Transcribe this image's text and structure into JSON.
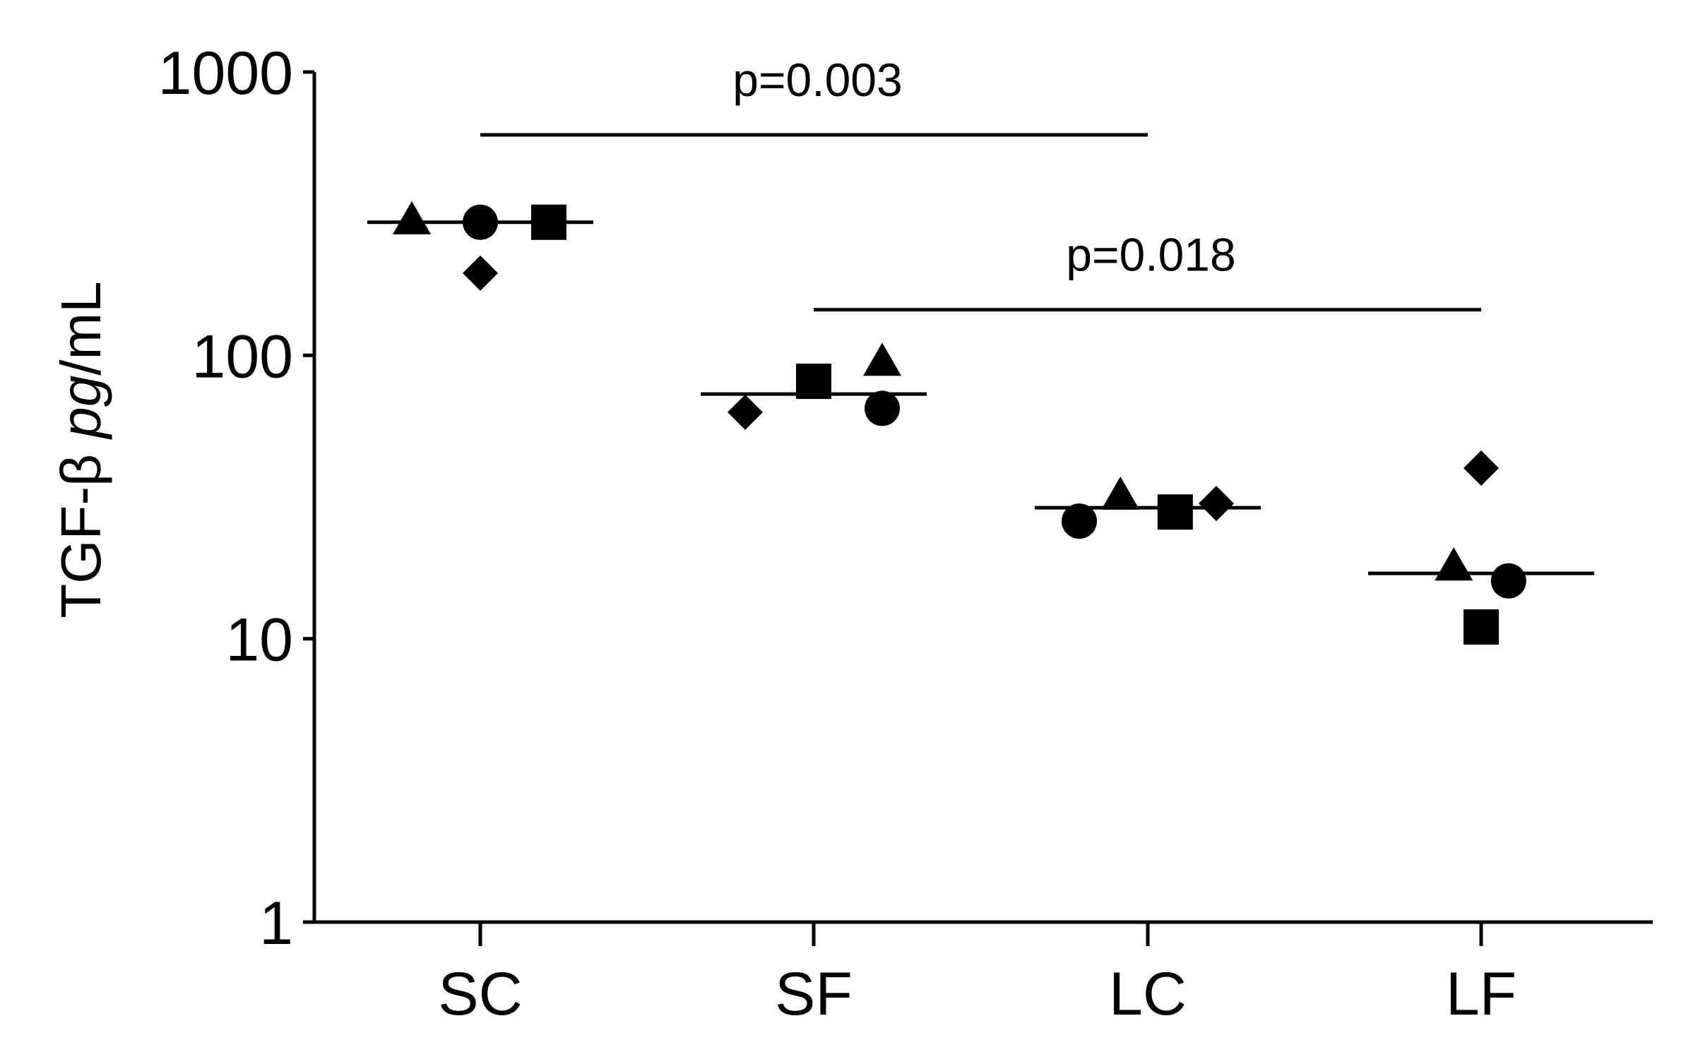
{
  "chart_data": {
    "type": "scatter",
    "subtype": "dot-plot-with-median",
    "ylabel_prefix": "TGF-β ",
    "ylabel_italic": "pg",
    "ylabel_suffix": "/mL",
    "yscale": "log",
    "ylim": [
      1,
      1000
    ],
    "yticks": [
      {
        "value": 1,
        "label": "1"
      },
      {
        "value": 10,
        "label": "10"
      },
      {
        "value": 100,
        "label": "100"
      },
      {
        "value": 1000,
        "label": "1000"
      }
    ],
    "categories": [
      "SC",
      "SF",
      "LC",
      "LF"
    ],
    "grid": false,
    "legend": "none",
    "marker_color": "#000000",
    "groups": [
      {
        "category": "SC",
        "median": 295,
        "points": [
          {
            "marker": "triangle",
            "value": 300,
            "jitter": -1
          },
          {
            "marker": "diamond",
            "value": 195,
            "jitter": 0
          },
          {
            "marker": "circle",
            "value": 295,
            "jitter": 0
          },
          {
            "marker": "square",
            "value": 295,
            "jitter": 1
          }
        ]
      },
      {
        "category": "SF",
        "median": 73,
        "points": [
          {
            "marker": "diamond",
            "value": 63,
            "jitter": -1
          },
          {
            "marker": "square",
            "value": 81,
            "jitter": 0
          },
          {
            "marker": "triangle",
            "value": 95,
            "jitter": 1
          },
          {
            "marker": "circle",
            "value": 65,
            "jitter": 1
          }
        ]
      },
      {
        "category": "LC",
        "median": 29,
        "points": [
          {
            "marker": "circle",
            "value": 26,
            "jitter": -1
          },
          {
            "marker": "triangle",
            "value": 32,
            "jitter": -0.4
          },
          {
            "marker": "square",
            "value": 28,
            "jitter": 0.4
          },
          {
            "marker": "diamond",
            "value": 30,
            "jitter": 1
          }
        ]
      },
      {
        "category": "LF",
        "median": 17,
        "points": [
          {
            "marker": "triangle",
            "value": 18,
            "jitter": -0.4
          },
          {
            "marker": "diamond",
            "value": 40,
            "jitter": 0
          },
          {
            "marker": "square",
            "value": 11,
            "jitter": 0
          },
          {
            "marker": "circle",
            "value": 16,
            "jitter": 0.4
          }
        ]
      }
    ],
    "annotations": [
      {
        "text": "p=0.003",
        "from": "SC",
        "to": "LC",
        "y": 600
      },
      {
        "text": "p=0.018",
        "from": "SF",
        "to": "LF",
        "y": 145
      }
    ]
  }
}
